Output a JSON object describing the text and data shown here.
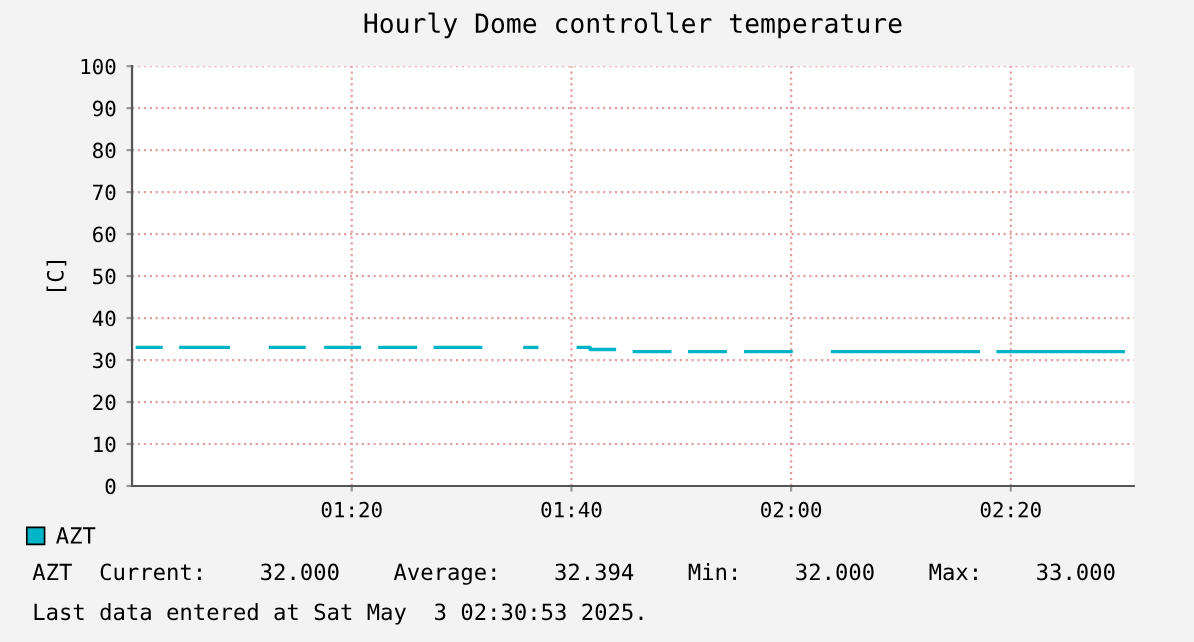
{
  "chart_data": {
    "type": "line",
    "title": "Hourly Dome controller temperature",
    "ylabel": "[C]",
    "series": [
      {
        "name": "AZT",
        "color": "#00b4c8",
        "x": [
          1.008,
          1.044
        ],
        "values": [
          33,
          33
        ]
      },
      {
        "color": "#00b4c8",
        "x": [
          1.074,
          1.146
        ],
        "values": [
          33,
          33
        ]
      },
      {
        "color": "#00b4c8",
        "x": [
          1.21,
          1.261
        ],
        "values": [
          33,
          33
        ]
      },
      {
        "color": "#00b4c8",
        "x": [
          1.294,
          1.345
        ],
        "values": [
          33,
          33
        ]
      },
      {
        "color": "#00b4c8",
        "x": [
          1.376,
          1.43
        ],
        "values": [
          33,
          33
        ]
      },
      {
        "color": "#00b4c8",
        "x": [
          1.46,
          1.529
        ],
        "values": [
          33,
          33
        ]
      },
      {
        "color": "#00b4c8",
        "x": [
          1.596,
          1.614
        ],
        "values": [
          33,
          33
        ]
      },
      {
        "color": "#00b4c8",
        "x": [
          1.677,
          1.695,
          1.695,
          1.732
        ],
        "values": [
          33,
          33,
          32.5,
          32.5
        ]
      },
      {
        "color": "#00b4c8",
        "x": [
          1.762,
          1.816
        ],
        "values": [
          32,
          32
        ]
      },
      {
        "color": "#00b4c8",
        "x": [
          1.846,
          1.9
        ],
        "values": [
          32,
          32
        ]
      },
      {
        "color": "#00b4c8",
        "x": [
          1.931,
          2.0
        ],
        "values": [
          32,
          32
        ]
      },
      {
        "color": "#00b4c8",
        "x": [
          2.063,
          2.284
        ],
        "values": [
          32,
          32
        ]
      },
      {
        "color": "#00b4c8",
        "x": [
          2.314,
          2.504
        ],
        "values": [
          32,
          32
        ]
      }
    ],
    "xlim": [
      1.0,
      2.52
    ],
    "xticks": [
      {
        "value": 1.3333,
        "label": "01:20"
      },
      {
        "value": 1.6667,
        "label": "01:40"
      },
      {
        "value": 2.0,
        "label": "02:00"
      },
      {
        "value": 2.3333,
        "label": "02:20"
      }
    ],
    "ylim": [
      0,
      100
    ],
    "yticks": [
      0,
      10,
      20,
      30,
      40,
      50,
      60,
      70,
      80,
      90,
      100
    ],
    "grid": true,
    "legend": "bottom left",
    "annotations": [
      "AZT  Current:    32.000    Average:    32.394    Min:    32.000    Max:    33.000",
      "Last data entered at Sat May  3 02:30:53 2025."
    ]
  }
}
